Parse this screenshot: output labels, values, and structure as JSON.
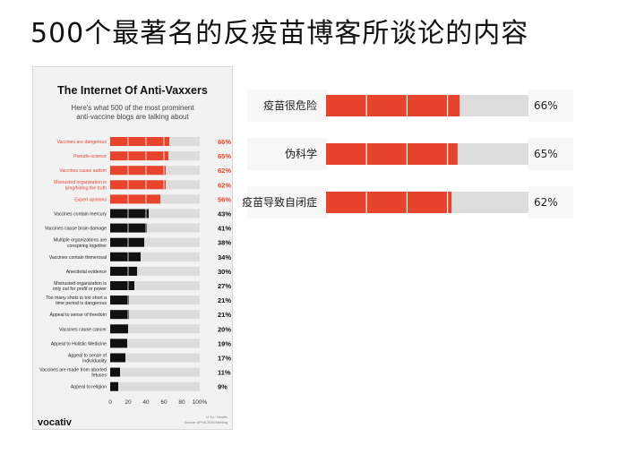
{
  "page": {
    "title": "500个最著名的反疫苗博客所谈论的内容"
  },
  "colors": {
    "red": "#e8432c",
    "black": "#111111",
    "grey": "#dcdcdc",
    "gridline": "#ffffff"
  },
  "chart_data": [
    {
      "type": "bar",
      "orientation": "horizontal",
      "title": "The Internet Of Anti-Vaxxers",
      "subtitle": "Here's what 500 of the most prominent anti-vaccine blogs are talking about",
      "xlim": [
        0,
        100
      ],
      "ticks": [
        "0",
        "20",
        "40",
        "60",
        "80",
        "100%"
      ],
      "brand": "vocativ",
      "credit": [
        "Li Yu / Vocativ",
        "Source: APHA 2015 Meeting"
      ],
      "series": [
        {
          "name": "",
          "color": "#e8432c",
          "categories": [
            "Vaccines are dangerous",
            "Pseudo-science",
            "Vaccines cause autism",
            "Mistrusted organization is lying/hiding the truth",
            "Expert opinions"
          ],
          "values": [
            66,
            65,
            62,
            62,
            56
          ],
          "labels": [
            "66%",
            "65%",
            "62%",
            "62%",
            "56%"
          ]
        },
        {
          "name": "",
          "color": "#111111",
          "categories": [
            "Vaccines contain mercury",
            "Vaccines cause brain damage",
            "Multiple organizations are conspiring together",
            "Vaccines contain thimerosal",
            "Anecdotal evidence",
            "Mistrusted organization is only out for profit or power",
            "Too many shots in too short a time period is dangerous",
            "Appeal to sense of freedom",
            "Vaccines cause cancer",
            "Appeal to Holistic Medicine",
            "Appeal to sense of individuality",
            "Vaccines are made from aborted fetuses",
            "Appeal to religion"
          ],
          "values": [
            43,
            41,
            38,
            34,
            30,
            27,
            21,
            21,
            20,
            19,
            17,
            11,
            9
          ],
          "labels": [
            "43%",
            "41%",
            "38%",
            "34%",
            "30%",
            "27%",
            "21%",
            "21%",
            "20%",
            "19%",
            "17%",
            "11%",
            "9%"
          ]
        }
      ]
    },
    {
      "type": "bar",
      "orientation": "horizontal",
      "xlim": [
        0,
        100
      ],
      "categories": [
        "疫苗很危险",
        "伪科学",
        "疫苗导致自闭症"
      ],
      "values": [
        66,
        65,
        62
      ],
      "labels": [
        "66%",
        "65%",
        "62%"
      ],
      "color": "#e8432c"
    }
  ]
}
